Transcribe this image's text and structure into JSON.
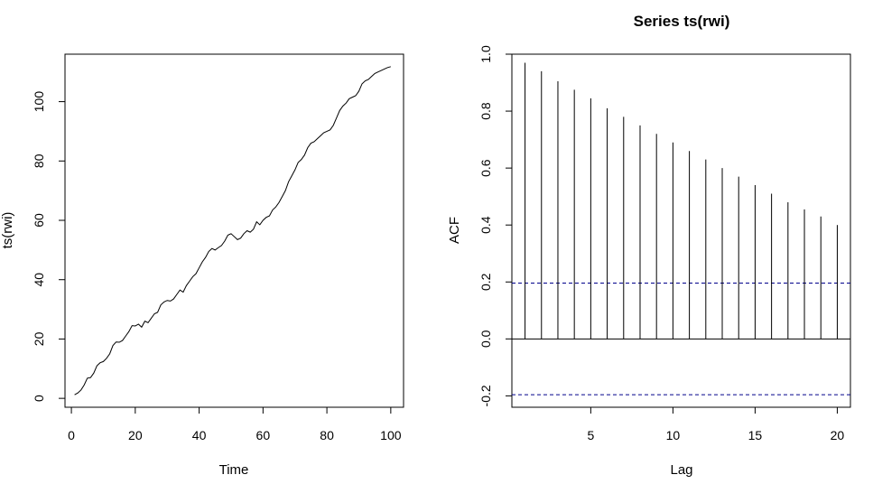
{
  "chart_data": [
    {
      "type": "line",
      "title": "",
      "xlabel": "Time",
      "ylabel": "ts(rwi)",
      "xlim": [
        -2,
        104
      ],
      "ylim": [
        -3,
        116
      ],
      "xticks": [
        0,
        20,
        40,
        60,
        80,
        100
      ],
      "yticks": [
        0,
        20,
        40,
        60,
        80,
        100
      ],
      "tick_labels_x": [
        "0",
        "20",
        "40",
        "60",
        "80",
        "100"
      ],
      "tick_labels_y": [
        "0",
        "20",
        "40",
        "60",
        "80",
        "100"
      ],
      "series": [
        {
          "x": [
            1,
            2,
            3,
            4,
            5,
            6,
            7,
            8,
            9,
            10,
            11,
            12,
            13,
            14,
            15,
            16,
            17,
            18,
            19,
            20,
            21,
            22,
            23,
            24,
            25,
            26,
            27,
            28,
            29,
            30,
            31,
            32,
            33,
            34,
            35,
            36,
            37,
            38,
            39,
            40,
            41,
            42,
            43,
            44,
            45,
            46,
            47,
            48,
            49,
            50,
            51,
            52,
            53,
            54,
            55,
            56,
            57,
            58,
            59,
            60,
            61,
            62,
            63,
            64,
            65,
            66,
            67,
            68,
            69,
            70,
            71,
            72,
            73,
            74,
            75,
            76,
            77,
            78,
            79,
            80,
            81,
            82,
            83,
            84,
            85,
            86,
            87,
            88,
            89,
            90,
            91,
            92,
            93,
            94,
            95,
            96,
            97,
            98,
            99,
            100
          ],
          "values": [
            1.2,
            1.8,
            2.8,
            4.5,
            6.8,
            7.0,
            8.5,
            11.0,
            12.0,
            12.4,
            13.5,
            15.0,
            17.8,
            19.0,
            18.9,
            19.5,
            21.0,
            22.5,
            24.5,
            24.4,
            25.0,
            24.0,
            26.0,
            25.5,
            27.0,
            28.5,
            29.0,
            31.5,
            32.5,
            33.0,
            32.8,
            33.5,
            35.0,
            36.5,
            35.8,
            38.0,
            39.5,
            41.0,
            42.0,
            44.0,
            46.0,
            47.5,
            49.5,
            50.5,
            50.0,
            50.8,
            51.5,
            53.0,
            55.0,
            55.5,
            54.5,
            53.5,
            54.0,
            55.5,
            56.5,
            56.0,
            57.0,
            59.5,
            58.5,
            60.0,
            61.0,
            61.5,
            63.5,
            64.5,
            66.0,
            68.0,
            70.0,
            73.0,
            75.0,
            77.0,
            79.5,
            80.5,
            82.0,
            84.5,
            86.0,
            86.5,
            87.5,
            88.5,
            89.5,
            90.0,
            90.5,
            92.0,
            94.5,
            97.0,
            98.5,
            99.5,
            101.0,
            101.5,
            102.0,
            103.5,
            106.0,
            107.0,
            107.5,
            108.5,
            109.5,
            110.0,
            110.5,
            111.0,
            111.5,
            111.8
          ]
        }
      ]
    },
    {
      "type": "bar",
      "title": "Series ts(rwi)",
      "xlabel": "Lag",
      "ylabel": "ACF",
      "xlim": [
        0.2,
        20.8
      ],
      "ylim": [
        -0.24,
        1.0
      ],
      "xticks": [
        5,
        10,
        15,
        20
      ],
      "yticks": [
        -0.2,
        0.0,
        0.2,
        0.4,
        0.6,
        0.8,
        1.0
      ],
      "tick_labels_x": [
        "5",
        "10",
        "15",
        "20"
      ],
      "tick_labels_y": [
        "-0.2",
        "0.0",
        "0.2",
        "0.4",
        "0.6",
        "0.8",
        "1.0"
      ],
      "lags": [
        1,
        2,
        3,
        4,
        5,
        6,
        7,
        8,
        9,
        10,
        11,
        12,
        13,
        14,
        15,
        16,
        17,
        18,
        19,
        20
      ],
      "values": [
        0.97,
        0.94,
        0.905,
        0.875,
        0.845,
        0.81,
        0.78,
        0.75,
        0.72,
        0.69,
        0.66,
        0.63,
        0.6,
        0.57,
        0.54,
        0.51,
        0.48,
        0.455,
        0.43,
        0.4
      ],
      "confidence_bounds": [
        0.196,
        -0.196
      ],
      "confidence_color": "#00008b"
    }
  ]
}
